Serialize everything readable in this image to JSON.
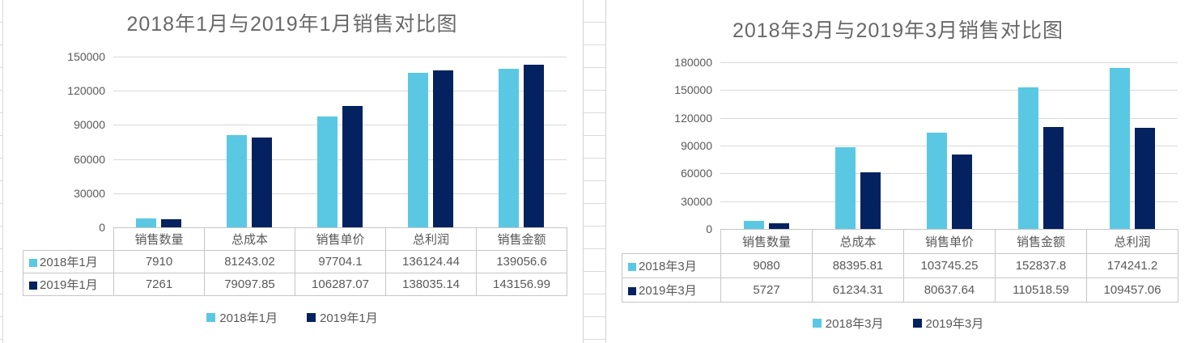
{
  "window": {
    "background": "#ffffff"
  },
  "colors": {
    "series_2018": "#5bc8e3",
    "series_2019": "#04225f",
    "gridline": "#d9d9d9",
    "table_border": "#c6c6c6",
    "text": "#595959",
    "title_text": "#686868",
    "sheet_gridline": "#d9d9d9"
  },
  "chart_data": [
    {
      "type": "bar",
      "title": "2018年1月与2019年1月销售对比图",
      "categories": [
        "销售数量",
        "总成本",
        "销售单价",
        "总利润",
        "销售金额"
      ],
      "series": [
        {
          "name": "2018年1月",
          "color": "#5bc8e3",
          "values": [
            7910,
            81243.02,
            97704.1,
            136124.44,
            139056.6
          ]
        },
        {
          "name": "2019年1月",
          "color": "#04225f",
          "values": [
            7261,
            79097.85,
            106287.07,
            138035.14,
            143156.99
          ]
        }
      ],
      "xlabel": "",
      "ylabel": "",
      "ylim": [
        0,
        150000
      ],
      "y_ticks": [
        150000,
        120000,
        90000,
        60000,
        30000,
        0
      ],
      "grid": true,
      "legend": {
        "position": "bottom",
        "entries": [
          "2018年1月",
          "2019年1月"
        ]
      },
      "data_table_shown": true
    },
    {
      "type": "bar",
      "title": "2018年3月与2019年3月销售对比图",
      "categories": [
        "销售数量",
        "总成本",
        "销售单价",
        "销售金额",
        "总利润"
      ],
      "series": [
        {
          "name": "2018年3月",
          "color": "#5bc8e3",
          "values": [
            9080,
            88395.81,
            103745.25,
            152837.8,
            174241.2
          ]
        },
        {
          "name": "2019年3月",
          "color": "#04225f",
          "values": [
            5727,
            61234.31,
            80637.64,
            110518.59,
            109457.06
          ]
        }
      ],
      "xlabel": "",
      "ylabel": "",
      "ylim": [
        0,
        180000
      ],
      "y_ticks": [
        180000,
        150000,
        120000,
        90000,
        60000,
        30000,
        0
      ],
      "grid": true,
      "legend": {
        "position": "bottom",
        "entries": [
          "2018年3月",
          "2019年3月"
        ]
      },
      "data_table_shown": true
    }
  ]
}
